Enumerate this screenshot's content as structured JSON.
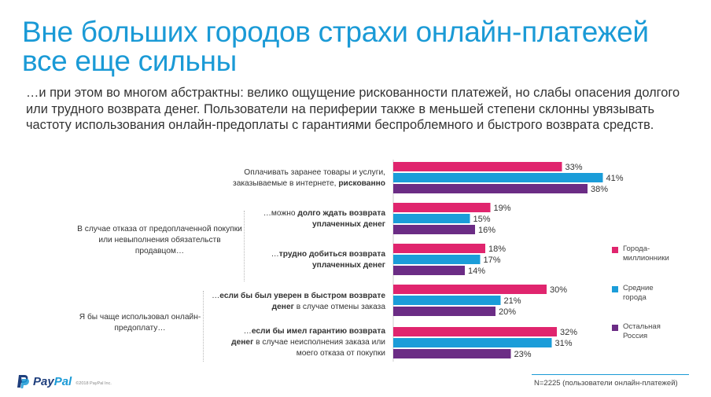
{
  "title": "Вне больших городов страхи онлайн-платежей все еще сильны",
  "subtitle": "…и при этом во многом абстрактны: велико ощущение рискованности платежей, но слабы опасения долгого или трудного возврата денег. Пользователи на периферии также в меньшей степени склонны увязывать частоту использования онлайн-предоплаты с гарантиями беспроблемного и быстрого возврата средств.",
  "group_labels": {
    "refusal": "В случае отказа от предоплаченной покупки или невыполнения обязательств продавцом…",
    "prefer": "Я бы чаще использовал онлайн-предоплату…"
  },
  "row_labels": [
    {
      "pre": "Оплачивать заранее товары и услуги, заказываемые в интернете, ",
      "bold": "рискованно",
      "post": ""
    },
    {
      "pre": "…можно ",
      "bold": "долго ждать возврата уплаченных денег",
      "post": ""
    },
    {
      "pre": "…",
      "bold": "трудно добиться возврата уплаченных денег",
      "post": ""
    },
    {
      "pre": "…",
      "bold": "если бы был уверен в быстром возврате денег",
      "post": " в случае отмены заказа"
    },
    {
      "pre": "…",
      "bold": "если бы имел гарантию возврата денег",
      "post": " в случае неисполнения заказа или моего отказа от покупки"
    }
  ],
  "chart_data": {
    "type": "bar",
    "orientation": "horizontal",
    "categories": [
      "Оплачивать заранее товары и услуги, заказываемые в интернете, рискованно",
      "…можно долго ждать возврата уплаченных денег",
      "…трудно добиться возврата уплаченных денег",
      "…если бы был уверен в быстром возврате денег в случае отмены заказа",
      "…если бы имел гарантию возврата денег в случае неисполнения заказа или моего отказа от покупки"
    ],
    "series": [
      {
        "name": "Города-миллионники",
        "color": "#e0256e",
        "values": [
          33,
          19,
          18,
          30,
          32
        ]
      },
      {
        "name": "Средние города",
        "color": "#1b9dd9",
        "values": [
          41,
          15,
          17,
          21,
          31
        ]
      },
      {
        "name": "Остальная Россия",
        "color": "#6b2c85",
        "values": [
          38,
          16,
          14,
          20,
          23
        ]
      }
    ],
    "value_suffix": "%",
    "xlim": [
      0,
      50
    ],
    "grid": false,
    "legend_position": "right"
  },
  "legend_lines": [
    [
      "Города-",
      "миллионники"
    ],
    [
      "Средние",
      "города"
    ],
    [
      "Остальная",
      "Россия"
    ]
  ],
  "brand": {
    "pay": "Pay",
    "pal": "Pal",
    "copyright": "©2018 PayPal Inc."
  },
  "footnote": "N=2225 (пользователи онлайн-платежей)"
}
